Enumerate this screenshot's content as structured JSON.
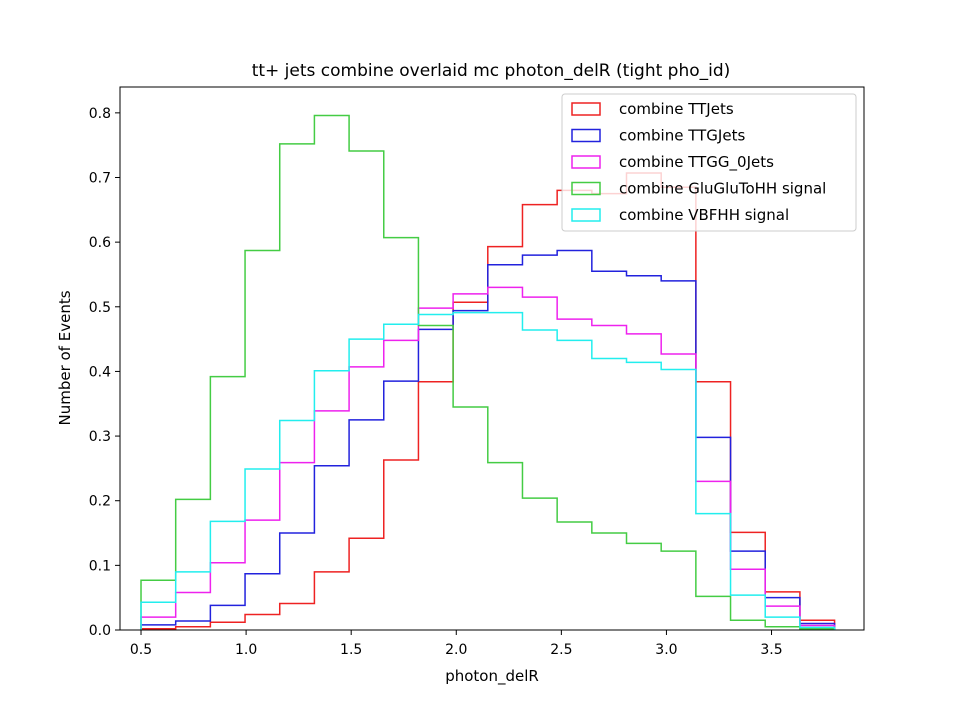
{
  "chart_data": {
    "type": "step-histogram",
    "title": "tt+ jets combine overlaid mc photon_delR (tight pho_id)",
    "xlabel": "photon_delR",
    "ylabel": "Number of Events",
    "xlim": [
      0.4,
      3.94
    ],
    "ylim": [
      0.0,
      0.84
    ],
    "xticks": [
      0.5,
      1.0,
      1.5,
      2.0,
      2.5,
      3.0,
      3.5
    ],
    "xtick_labels": [
      "0.5",
      "1.0",
      "1.5",
      "2.0",
      "2.5",
      "3.0",
      "3.5"
    ],
    "yticks": [
      0.0,
      0.1,
      0.2,
      0.3,
      0.4,
      0.5,
      0.6,
      0.7,
      0.8
    ],
    "ytick_labels": [
      "0.0",
      "0.1",
      "0.2",
      "0.3",
      "0.4",
      "0.5",
      "0.6",
      "0.7",
      "0.8"
    ],
    "legend_position": "top-right",
    "bin_edges": [
      0.5,
      0.665,
      0.83,
      0.995,
      1.16,
      1.325,
      1.49,
      1.655,
      1.82,
      1.985,
      2.15,
      2.315,
      2.48,
      2.645,
      2.81,
      2.975,
      3.14,
      3.305,
      3.47,
      3.635,
      3.8
    ],
    "series": [
      {
        "name": "combine TTJets",
        "color": "#ee2222",
        "values": [
          0.002,
          0.005,
          0.012,
          0.024,
          0.041,
          0.09,
          0.142,
          0.263,
          0.384,
          0.507,
          0.593,
          0.658,
          0.68,
          0.675,
          0.707,
          0.685,
          0.384,
          0.151,
          0.059,
          0.015
        ]
      },
      {
        "name": "combine TTGJets",
        "color": "#2222dd",
        "values": [
          0.008,
          0.014,
          0.038,
          0.087,
          0.15,
          0.254,
          0.325,
          0.385,
          0.465,
          0.494,
          0.565,
          0.58,
          0.587,
          0.555,
          0.548,
          0.54,
          0.298,
          0.122,
          0.05,
          0.01
        ]
      },
      {
        "name": "combine TTGG_0Jets",
        "color": "#ee22ee",
        "values": [
          0.02,
          0.058,
          0.104,
          0.17,
          0.259,
          0.339,
          0.407,
          0.448,
          0.498,
          0.52,
          0.53,
          0.515,
          0.481,
          0.471,
          0.458,
          0.427,
          0.23,
          0.094,
          0.037,
          0.007
        ]
      },
      {
        "name": "combine GluGluToHH signal",
        "color": "#44cc44",
        "values": [
          0.077,
          0.202,
          0.392,
          0.587,
          0.752,
          0.796,
          0.741,
          0.607,
          0.471,
          0.345,
          0.259,
          0.204,
          0.167,
          0.15,
          0.134,
          0.122,
          0.052,
          0.015,
          0.005,
          0.002
        ]
      },
      {
        "name": "combine VBFHH signal",
        "color": "#22eeee",
        "values": [
          0.043,
          0.09,
          0.168,
          0.249,
          0.324,
          0.401,
          0.45,
          0.473,
          0.488,
          0.491,
          0.491,
          0.464,
          0.448,
          0.42,
          0.414,
          0.403,
          0.18,
          0.054,
          0.02,
          0.004
        ]
      }
    ]
  }
}
